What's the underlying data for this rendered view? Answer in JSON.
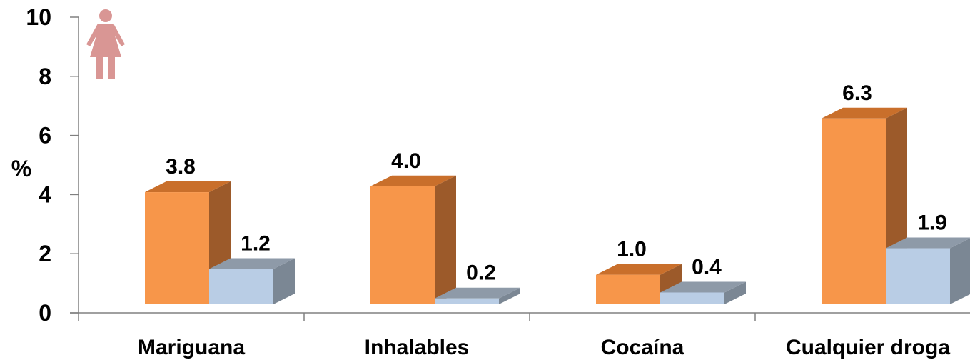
{
  "chart_data": {
    "type": "bar",
    "style": "3d-clustered",
    "categories": [
      "Mariguana",
      "Inhalables",
      "Cocaína",
      "Cualquier droga"
    ],
    "series": [
      {
        "values": [
          3.8,
          4.0,
          1.0,
          6.3
        ],
        "labels": [
          "3.8",
          "4.0",
          "1.0",
          "6.3"
        ]
      },
      {
        "values": [
          1.2,
          0.2,
          0.4,
          1.9
        ],
        "labels": [
          "1.2",
          "0.2",
          "0.4",
          "1.9"
        ]
      }
    ],
    "ylabel": "%",
    "ylim": [
      0,
      10
    ],
    "yticks": [
      "0",
      "2",
      "4",
      "6",
      "8",
      "10"
    ],
    "grid": false,
    "legend": "none",
    "icon": "female-figure-icon"
  },
  "colors": {
    "series_front": [
      "#f7964a",
      "#b9cde5"
    ],
    "series_side": [
      "#9c5a2a",
      "#7b8794"
    ],
    "series_top": [
      "#c96f2b",
      "#8e9aa8"
    ],
    "axis": "#808080",
    "icon": "#d99694"
  }
}
